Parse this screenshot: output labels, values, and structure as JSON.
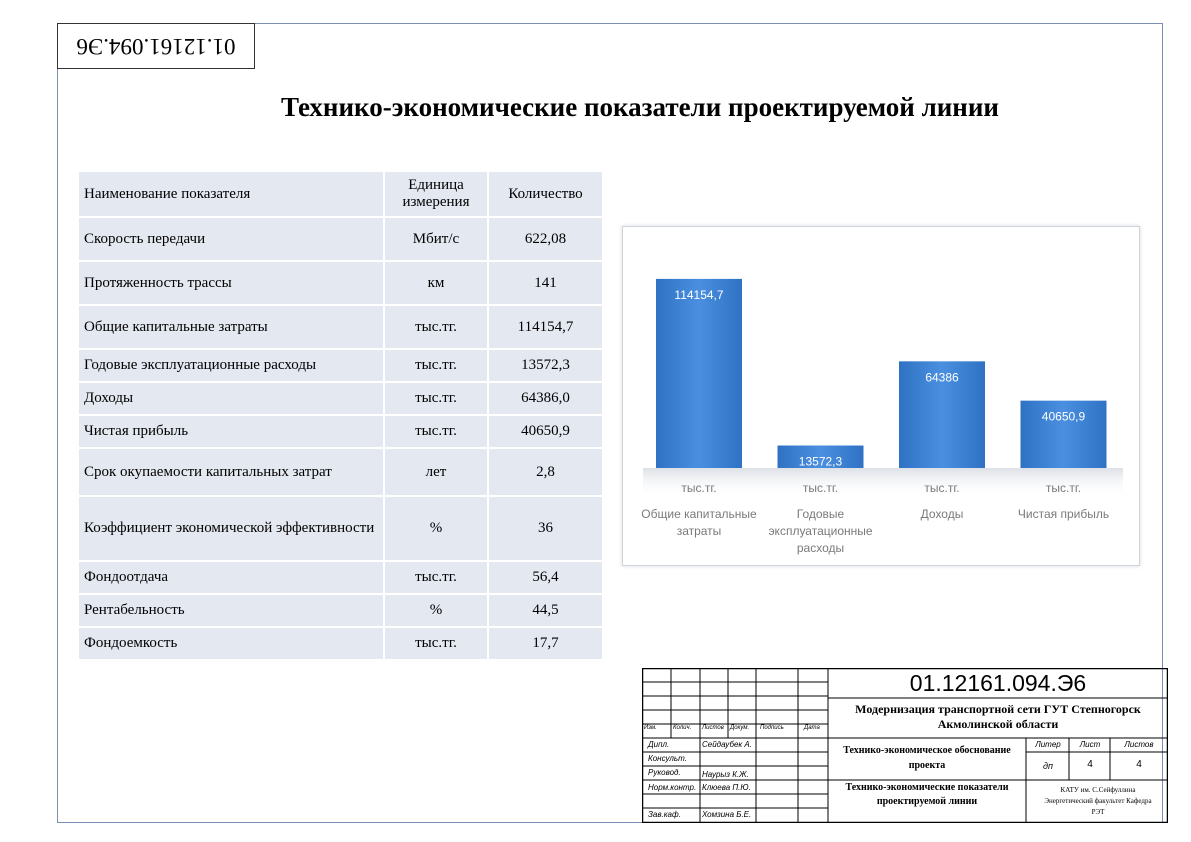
{
  "document_code_rotated": "01.12161.094.Э6",
  "title": "Технико-экономические показатели проектируемой линии",
  "table": {
    "headers": [
      "Наименование показателя",
      "Единица измерения",
      "Количество"
    ],
    "rows": [
      [
        "Скорость передачи",
        "Мбит/с",
        "622,08"
      ],
      [
        "Протяженность трассы",
        "км",
        "141"
      ],
      [
        "Общие капитальные затраты",
        "тыс.тг.",
        "114154,7"
      ],
      [
        "Годовые эксплуатационные расходы",
        "тыс.тг.",
        "13572,3"
      ],
      [
        "Доходы",
        "тыс.тг.",
        "64386,0"
      ],
      [
        "Чистая прибыль",
        "тыс.тг.",
        "40650,9"
      ],
      [
        "Срок окупаемости капитальных затрат",
        "лет",
        "2,8"
      ],
      [
        "Коэффициент экономической эффективности",
        "%",
        "36"
      ],
      [
        "Фондоотдача",
        "тыс.тг.",
        "56,4"
      ],
      [
        "Рентабельность",
        "%",
        "44,5"
      ],
      [
        "Фондоемкость",
        "тыс.тг.",
        "17,7"
      ]
    ]
  },
  "chart_data": {
    "type": "bar",
    "categories": [
      "Общие капитальные затраты",
      "Годовые эксплуатационные расходы",
      "Доходы",
      "Чистая прибыль"
    ],
    "units": [
      "тыс.тг.",
      "тыс.тг.",
      "тыс.тг.",
      "тыс.тг."
    ],
    "values": [
      114154.7,
      13572.3,
      64386,
      40650.9
    ],
    "data_labels": [
      "114154,7",
      "13572,3",
      "64386",
      "40650,9"
    ],
    "ylim": [
      0,
      120000
    ],
    "grid": false,
    "legend": "none",
    "bar_color": "#3a7fcf"
  },
  "stamp": {
    "code": "01.12161.094.Э6",
    "project_title": "Модернизация транспортной сети ГУТ Степногорск Акмолинской области",
    "section": "Технико-экономическое обоснование проекта",
    "sheet_title": "Технико-экономические показатели проектируемой линии",
    "org": "КАТУ им. С.Сейфуллина Энергетический факультет Кафедра РЭТ",
    "col_headers": [
      "Изм.",
      "Колич.",
      "Листов",
      "Докум.",
      "Подпись",
      "Дата"
    ],
    "roles": [
      "Дипл.",
      "Консульт.",
      "Руковод.",
      "Норм.контр.",
      "Зав.каф."
    ],
    "names": [
      "Сейдаубек А.",
      "",
      "Наурыз К.Ж.",
      "Клюева П.Ю.",
      "Хомзина Б.Е."
    ],
    "litera_label": "Литер",
    "sheet_label": "Лист",
    "sheets_label": "Листов",
    "litera": "дп",
    "sheet": "4",
    "sheets": "4"
  }
}
